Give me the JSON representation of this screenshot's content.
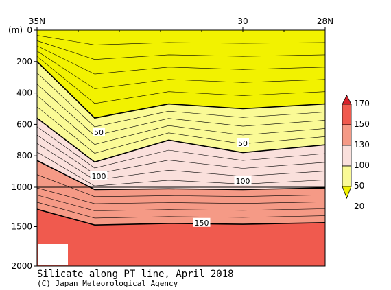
{
  "chart_data": {
    "type": "heatmap",
    "title": "Silicate along PT line, April 2018",
    "credit": "(C) Japan Meteorological Agency",
    "ylabel": "(m)",
    "x_ticks": [
      "35N",
      "30",
      "28N"
    ],
    "x_range": [
      35,
      28
    ],
    "y_ticks_upper": [
      "0",
      "200",
      "400",
      "600",
      "800",
      "1000"
    ],
    "y_ticks_lower": [
      "1500",
      "2000"
    ],
    "y_range_upper": [
      0,
      1000
    ],
    "y_range_lower": [
      1000,
      2000
    ],
    "colorbar": {
      "levels": [
        "170",
        "150",
        "130",
        "100",
        "50",
        "20"
      ],
      "colors": [
        "#d8202a",
        "#f05a4e",
        "#f59a86",
        "#fae0dc",
        "#fafa96",
        "#f2f200"
      ]
    },
    "contour_labels": [
      {
        "text": "50",
        "lat": 33.5,
        "depth": 650
      },
      {
        "text": "50",
        "lat": 30.0,
        "depth": 720
      },
      {
        "text": "100",
        "lat": 33.5,
        "depth": 930
      },
      {
        "text": "100",
        "lat": 30.0,
        "depth": 960
      },
      {
        "text": "150",
        "lat": 31.0,
        "depth": 1450
      }
    ],
    "zones": [
      {
        "level": 20,
        "color": "#f2f200",
        "top_depths": [
          0,
          0,
          0,
          0,
          0
        ]
      },
      {
        "level": 50,
        "color": "#fafa96",
        "top_depths": [
          200,
          560,
          470,
          500,
          470
        ]
      },
      {
        "level": 100,
        "color": "#fae0dc",
        "top_depths": [
          560,
          840,
          700,
          780,
          730
        ]
      },
      {
        "level": 130,
        "color": "#f59a86",
        "top_depths": [
          830,
          1030,
          1020,
          1030,
          1010
        ]
      },
      {
        "level": 150,
        "color": "#f05a4e",
        "top_depths": [
          1280,
          1480,
          1460,
          1470,
          1450
        ]
      }
    ],
    "zone_lats": [
      35,
      33.6,
      31.8,
      30,
      28
    ]
  }
}
